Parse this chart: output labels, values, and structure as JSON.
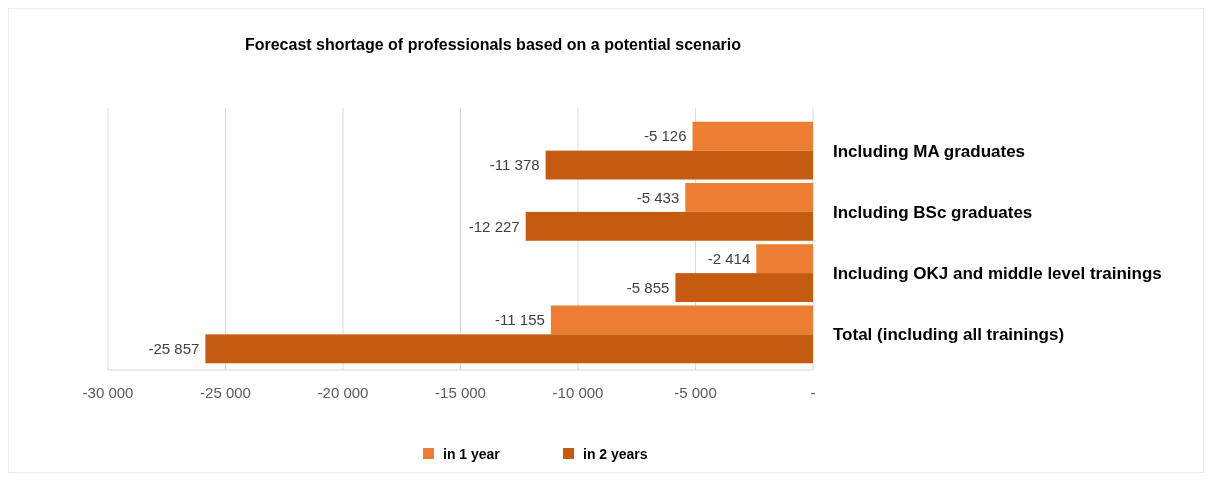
{
  "chart_data": {
    "type": "bar",
    "orientation": "horizontal",
    "title": "Forecast shortage of professionals based on a potential scenario",
    "categories": [
      "Including MA graduates",
      "Including BSc graduates",
      "Including OKJ and middle level trainings",
      "Total (including all trainings)"
    ],
    "series": [
      {
        "name": "in 1 year",
        "color": "#ed7d31",
        "values": [
          -5126,
          -5433,
          -2414,
          -11155
        ],
        "value_labels": [
          "-5 126",
          "-5 433",
          "-2 414",
          "-11 155"
        ]
      },
      {
        "name": "in 2 years",
        "color": "#c55a11",
        "values": [
          -11378,
          -12227,
          -5855,
          -25857
        ],
        "value_labels": [
          "-11 378",
          "-12 227",
          "-5 855",
          "-25 857"
        ]
      }
    ],
    "xlim": [
      -30000,
      0
    ],
    "xticks": [
      {
        "value": -30000,
        "label": "-30 000"
      },
      {
        "value": -25000,
        "label": "-25 000"
      },
      {
        "value": -20000,
        "label": "-20 000"
      },
      {
        "value": -15000,
        "label": "-15 000"
      },
      {
        "value": -10000,
        "label": "-10 000"
      },
      {
        "value": -5000,
        "label": "-5 000"
      },
      {
        "value": 0,
        "label": "-"
      }
    ],
    "grid": "x",
    "legend": "bottom"
  }
}
